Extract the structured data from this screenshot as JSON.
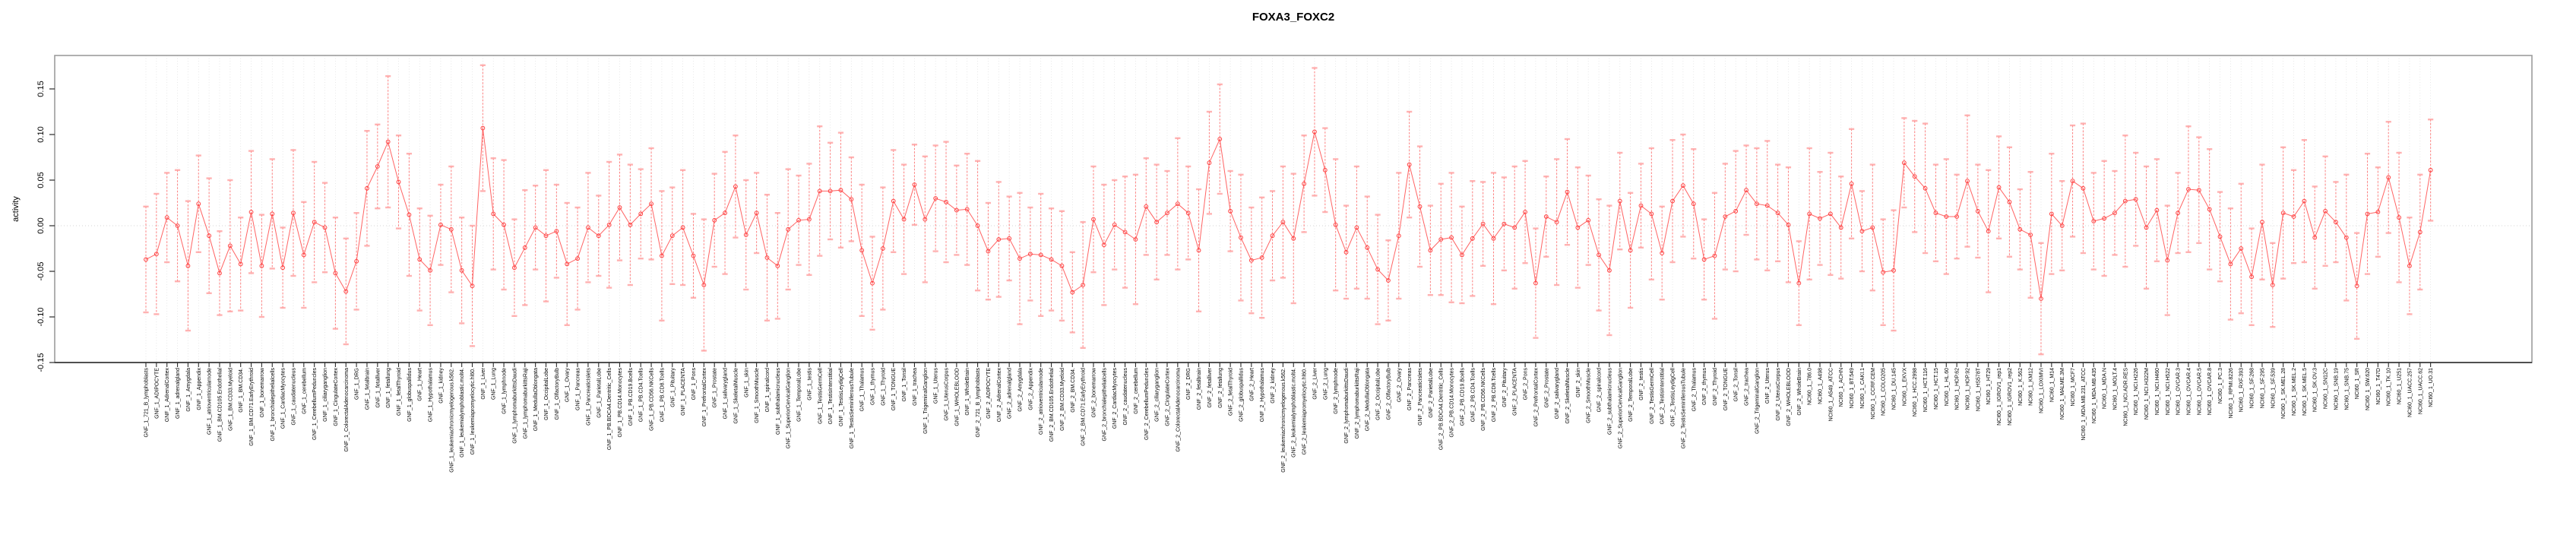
{
  "title": "FOXA3_FOXC2",
  "colors": {
    "series_line": "#ff5252",
    "marker_stroke": "#ff4040",
    "whisker": "#ff6b6b",
    "whisker_cap": "#ffa0a0",
    "gridline": "#dedede",
    "zero_line": "#d6d6d6",
    "plot_border": "#9c9c9c",
    "axis_dark": "#2b2b2b",
    "text": "#000000",
    "background": "#ffffff"
  },
  "chart_data": {
    "type": "line",
    "variant": "point-estimates with error bars (dashed whiskers, capped), points joined by line",
    "title": "FOXA3_FOXC2",
    "xlabel": "",
    "ylabel": "activity",
    "ylim": [
      -0.15,
      0.1875
    ],
    "yticks": [
      0.15,
      0.1,
      0.05,
      0.0,
      -0.05,
      -0.1,
      -0.15
    ],
    "ytick_labels": [
      "0.15",
      "0.10",
      "0.05",
      "0.00",
      "-0.05",
      "-0.10",
      "-0.15"
    ],
    "grid": {
      "vertical_dotted_per_category": true,
      "horizontal_zero_dotted": true,
      "other_horizontal": false
    },
    "legend": "none",
    "groups": [
      {
        "prefix": "GNF_1_",
        "list": "gnf"
      },
      {
        "prefix": "GNF_2_",
        "list": "gnf"
      },
      {
        "prefix": "NCI60_1_",
        "list": "nci60"
      }
    ],
    "gnf_suffixes": [
      "721_B_lymphoblasts",
      "ADIPOCYTE",
      "AdrenalCortex",
      "adrenalgland",
      "Amygdala",
      "Appendix",
      "atrioventricularnode",
      "BM.CD105.Endothelial",
      "BM.CD33.Myeloid",
      "BM.CD34.",
      "BM.CD71.EarlyErythroid",
      "bonemarrow",
      "bronchialepithelialcells",
      "CardiacMyocytes",
      "caudatenucleus",
      "cerebellum",
      "CerebellumPeduncles",
      "ciliaryganglion",
      "CingulateCortex",
      "ColorectalAdenocarcinoma",
      "DRG",
      "fetalbrain",
      "fetalliver",
      "fetallung",
      "fetalThyroid",
      "globuspallidus",
      "Heart",
      "Hypothalamus",
      "kidney",
      "leukemiachronicmyelogenous.k562.",
      "leukemialymphoblastic.molt4.",
      "leukemiapromyelocytic.hl60.",
      "Liver",
      "Lung",
      "lymphnode",
      "lymphomaburkittsDaudi",
      "lymphomaburkittsRaji",
      "MedullaOblongata",
      "OccipitalLobe",
      "OlfactoryBulb",
      "Ovary",
      "Pancreas",
      "PancreaticIslets",
      "ParietalLobe",
      "PB.BDCA4.Dentritic_Cells",
      "PB.CD14.Monocytes",
      "PB.CD19.Bcells",
      "PB.CD4.Tcells",
      "PB.CD56.NKCells",
      "PB.CD8.Tcells",
      "Pituitary",
      "PLACENTA",
      "Pons",
      "PrefrontalCortex",
      "Prostate",
      "salivarygland",
      "SkeletalMuscle",
      "skin",
      "SmoothMuscle",
      "spinalcord",
      "subthalamicnucleus",
      "SuperiorCervicalGanglion",
      "TemporalLobe",
      "testis",
      "TestisGermCell",
      "TestisInterstitial",
      "TestisLeydigCell",
      "TestisSeminiferousTubule",
      "Thalamus",
      "thymus",
      "Thyroid",
      "TONGUE",
      "Tonsil",
      "trachea",
      "TrigeminalGanglion",
      "Uterus",
      "UterusCorpus",
      "WHOLEBLOOD",
      "WholeBrain"
    ],
    "nci60_suffixes": [
      "786.0",
      "A498",
      "A549_ATCC",
      "ACHN",
      "BT.549",
      "CAKI.1",
      "CCRF.CEM",
      "COLO205",
      "DU.145",
      "EKVX",
      "HCC.2998",
      "HCT.116",
      "HCT.15",
      "HL.60",
      "HOP.62",
      "HOP.92",
      "HS578T",
      "HT29",
      "IGROV1_rep1",
      "IGROV1_rep2",
      "K.562",
      "KM12",
      "LOXIMVI",
      "M14",
      "MALME.3M",
      "MCF7",
      "MDA.MB.231_ATCC",
      "MDA.MB.435",
      "MDA.N",
      "MOLT.4",
      "NCI.ADR.RES",
      "NCI.H226",
      "NCI.H322M",
      "NCI.H460",
      "NCI.H522",
      "OVCAR.3",
      "OVCAR.4",
      "OVCAR.5",
      "OVCAR.8",
      "PC.3",
      "RPMI.8226",
      "RXF.393",
      "SF.268",
      "SF.295",
      "SF.539",
      "SK.MEL.28",
      "SK.MEL.2",
      "SK.MEL.5",
      "SK.OV.3",
      "SN12C",
      "SNB.19",
      "SNB.75",
      "SR",
      "SW.620",
      "T47D",
      "TK.10",
      "U251",
      "UACC.257",
      "UACC.62",
      "UO.31"
    ],
    "values": [
      -0.037,
      -0.031,
      0.009,
      0.0,
      -0.044,
      0.024,
      -0.011,
      -0.052,
      -0.022,
      -0.042,
      0.015,
      -0.044,
      0.013,
      -0.046,
      0.014,
      -0.032,
      0.004,
      -0.002,
      -0.052,
      -0.072,
      -0.039,
      0.041,
      0.065,
      0.092,
      0.048,
      0.012,
      -0.037,
      -0.049,
      0.001,
      -0.004,
      -0.049,
      -0.066,
      0.107,
      0.013,
      0.001,
      -0.046,
      -0.024,
      -0.002,
      -0.011,
      -0.006,
      -0.042,
      -0.036,
      -0.002,
      -0.011,
      0.001,
      0.02,
      0.001,
      0.013,
      0.024,
      -0.033,
      -0.011,
      -0.002,
      -0.033,
      -0.065,
      0.006,
      0.014,
      0.043,
      -0.01,
      0.014,
      -0.035,
      -0.044,
      -0.004,
      0.006,
      0.007,
      0.038,
      0.038,
      0.039,
      0.029,
      -0.027,
      -0.063,
      -0.025,
      0.027,
      0.007,
      0.045,
      0.007,
      0.03,
      0.026,
      0.017,
      0.018,
      0.0,
      -0.028,
      -0.015,
      -0.014,
      -0.036,
      -0.031,
      -0.032,
      -0.037,
      -0.044,
      -0.073,
      -0.065,
      0.007,
      -0.021,
      0.001,
      -0.007,
      -0.015,
      0.021,
      0.004,
      0.014,
      0.024,
      0.014,
      -0.027,
      0.069,
      0.095,
      0.016,
      -0.013,
      -0.038,
      -0.035,
      -0.011,
      0.004,
      -0.014,
      0.046,
      0.103,
      0.061,
      0.001,
      -0.029,
      -0.002,
      -0.024,
      -0.048,
      -0.06,
      -0.011,
      0.067,
      0.021,
      -0.027,
      -0.015,
      -0.013,
      -0.032,
      -0.014,
      0.002,
      -0.014,
      0.002,
      -0.002,
      0.015,
      -0.063,
      0.01,
      0.004,
      0.037,
      -0.002,
      0.006,
      -0.032,
      -0.049,
      0.027,
      -0.027,
      0.022,
      0.013,
      -0.03,
      0.027,
      0.044,
      0.024,
      -0.037,
      -0.033,
      0.01,
      0.016,
      0.039,
      0.024,
      0.022,
      0.014,
      0.001,
      -0.063,
      0.013,
      0.008,
      0.013,
      -0.002,
      0.046,
      -0.006,
      -0.002,
      -0.051,
      -0.049,
      0.069,
      0.054,
      0.041,
      0.014,
      0.01,
      0.01,
      0.049,
      0.016,
      -0.006,
      0.042,
      0.026,
      -0.004,
      -0.01,
      -0.08,
      0.013,
      0.0,
      0.049,
      0.041,
      0.005,
      0.008,
      0.014,
      0.027,
      0.029,
      -0.002,
      0.017,
      -0.038,
      0.014,
      0.04,
      0.039,
      0.018,
      -0.012,
      -0.042,
      -0.025,
      -0.056,
      0.004,
      -0.065,
      0.014,
      0.01,
      0.027,
      -0.013,
      0.016,
      0.004,
      -0.013,
      -0.066,
      0.013,
      0.015,
      0.053,
      0.009,
      -0.044,
      -0.007,
      0.061
    ],
    "err_halfwidth_cycle": [
      0.058,
      0.066,
      0.049,
      0.061,
      0.071,
      0.053,
      0.063,
      0.046,
      0.072,
      0.051,
      0.067,
      0.056,
      0.06,
      0.044,
      0.069
    ],
    "err_overrides": {
      "19": 0.058,
      "32": 0.069,
      "102": 0.06,
      "111": 0.07,
      "180": 0.061,
      "217": 0.0555
    }
  }
}
